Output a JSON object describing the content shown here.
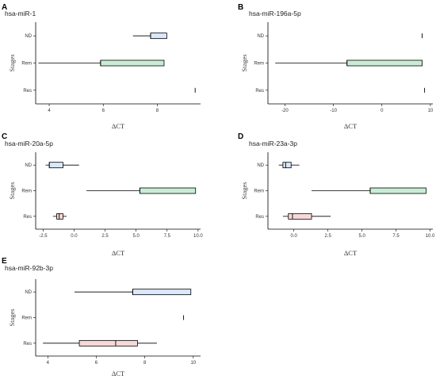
{
  "figure": {
    "colors": {
      "ND": "#dae8fc",
      "Rem": "#c8edd4",
      "Res": "#f7d9d9",
      "line": "#000000"
    }
  },
  "chart_data": [
    {
      "type": "box",
      "panel": "A",
      "title": "hsa-miR-1",
      "xlabel": "ΔCT",
      "ylabel": "Stages",
      "categories": [
        "ND",
        "Rem",
        "Res"
      ],
      "xlim": [
        3.5,
        9.6
      ],
      "xticks": [
        4,
        6,
        8
      ],
      "boxes": [
        {
          "category": "ND",
          "min": 7.1,
          "q1": 7.75,
          "median": 7.75,
          "q3": 8.35,
          "max": 8.35
        },
        {
          "category": "Rem",
          "min": 3.6,
          "q1": 5.9,
          "median": 5.9,
          "q3": 8.25,
          "max": 8.25
        },
        {
          "category": "Res",
          "min": 9.4,
          "q1": 9.4,
          "median": 9.4,
          "q3": 9.4,
          "max": 9.4
        }
      ]
    },
    {
      "type": "box",
      "panel": "B",
      "title": "hsa-miR-196a-5p",
      "xlabel": "ΔCT",
      "ylabel": "Stages",
      "categories": [
        "ND",
        "Rem",
        "Res"
      ],
      "xlim": [
        -23.5,
        10.5
      ],
      "xticks": [
        -20,
        -10,
        0,
        10
      ],
      "boxes": [
        {
          "category": "ND",
          "min": 8.3,
          "q1": 8.3,
          "median": 8.3,
          "q3": 8.3,
          "max": 8.3
        },
        {
          "category": "Rem",
          "min": -22,
          "q1": -7.2,
          "median": -7.2,
          "q3": 8.3,
          "max": 8.3
        },
        {
          "category": "Res",
          "min": 8.8,
          "q1": 8.8,
          "median": 8.8,
          "q3": 8.8,
          "max": 8.8
        }
      ]
    },
    {
      "type": "box",
      "panel": "C",
      "title": "hsa-miR-20a-5p",
      "xlabel": "ΔCT",
      "ylabel": "Stages",
      "categories": [
        "ND",
        "Rem",
        "Res"
      ],
      "xlim": [
        -3.1,
        10.2
      ],
      "xticks": [
        -2.5,
        0.0,
        2.5,
        5.0,
        7.5,
        10.0
      ],
      "tick_labels": [
        "-2.5",
        "0.0",
        "2.5",
        "5.0",
        "7.5",
        "10.0"
      ],
      "boxes": [
        {
          "category": "ND",
          "min": -2.3,
          "q1": -2.0,
          "median": -2.0,
          "q3": -0.9,
          "max": 0.4
        },
        {
          "category": "Rem",
          "min": 1.0,
          "q1": 5.3,
          "median": 5.3,
          "q3": 9.8,
          "max": 9.8
        },
        {
          "category": "Res",
          "min": -1.7,
          "q1": -1.4,
          "median": -1.2,
          "q3": -0.9,
          "max": -0.6
        }
      ]
    },
    {
      "type": "box",
      "panel": "D",
      "title": "hsa-miR-23a-3p",
      "xlabel": "ΔCT",
      "ylabel": "Stages",
      "categories": [
        "ND",
        "Rem",
        "Res"
      ],
      "xlim": [
        -1.9,
        10.2
      ],
      "xticks": [
        0.0,
        2.5,
        5.0,
        7.5,
        10.0
      ],
      "tick_labels": [
        "0.0",
        "2.5",
        "5.0",
        "7.5",
        "10.0"
      ],
      "boxes": [
        {
          "category": "ND",
          "min": -1.1,
          "q1": -0.8,
          "median": -0.6,
          "q3": -0.2,
          "max": 0.4
        },
        {
          "category": "Rem",
          "min": 1.3,
          "q1": 5.6,
          "median": 5.6,
          "q3": 9.7,
          "max": 9.7
        },
        {
          "category": "Res",
          "min": -0.8,
          "q1": -0.4,
          "median": -0.1,
          "q3": 1.3,
          "max": 2.7
        }
      ]
    },
    {
      "type": "box",
      "panel": "E",
      "title": "hsa-miR-92b-3p",
      "xlabel": "ΔCT",
      "ylabel": "Stages",
      "categories": [
        "ND",
        "Rem",
        "Res"
      ],
      "xlim": [
        3.5,
        10.3
      ],
      "xticks": [
        4,
        6,
        8,
        10
      ],
      "boxes": [
        {
          "category": "ND",
          "min": 5.1,
          "q1": 7.5,
          "median": 7.5,
          "q3": 9.9,
          "max": 9.9
        },
        {
          "category": "Rem",
          "min": 9.6,
          "q1": 9.6,
          "median": 9.6,
          "q3": 9.6,
          "max": 9.6
        },
        {
          "category": "Res",
          "min": 3.8,
          "q1": 5.3,
          "median": 6.8,
          "q3": 7.7,
          "max": 8.5
        }
      ]
    }
  ]
}
